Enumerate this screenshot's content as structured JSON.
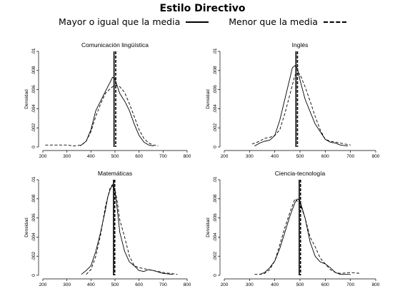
{
  "title": "Estilo Directivo",
  "legend": {
    "solid_label": "Mayor o igual que la media",
    "dashed_label": "Menor que la media"
  },
  "chart_data": [
    {
      "type": "line",
      "title": "Comunicación lingüística",
      "ylabel": "Densidad",
      "xlabel": "",
      "xlim": [
        200,
        800
      ],
      "ylim": [
        0,
        0.01
      ],
      "x_ticks": [
        "200",
        "300",
        "400",
        "500",
        "600",
        "700",
        "800"
      ],
      "y_ticks": [
        "0",
        ".002",
        ".004",
        ".006",
        ".008",
        ".01"
      ],
      "vlines": [
        {
          "x": 496,
          "style": "solid"
        },
        {
          "x": 503,
          "style": "dashed"
        }
      ],
      "series": [
        {
          "style": "solid",
          "x": [
            355,
            380,
            400,
            420,
            440,
            460,
            480,
            490,
            500,
            510,
            520,
            540,
            560,
            580,
            600,
            620,
            640,
            660
          ],
          "y": [
            0.0001,
            0.0006,
            0.0018,
            0.0038,
            0.0048,
            0.0058,
            0.0068,
            0.0073,
            0.0071,
            0.0063,
            0.0056,
            0.0048,
            0.0038,
            0.0024,
            0.0012,
            0.0005,
            0.0002,
            0.0001
          ]
        },
        {
          "style": "dashed",
          "x": [
            210,
            250,
            300,
            330,
            360,
            380,
            400,
            420,
            440,
            460,
            480,
            500,
            520,
            540,
            560,
            580,
            600,
            620,
            640,
            660,
            680
          ],
          "y": [
            0.0002,
            0.0002,
            0.0002,
            0.0001,
            0.0002,
            0.0006,
            0.0016,
            0.0032,
            0.0045,
            0.0056,
            0.0061,
            0.0065,
            0.0063,
            0.0057,
            0.0045,
            0.0032,
            0.0018,
            0.0009,
            0.0004,
            0.0002,
            0.0001
          ]
        }
      ]
    },
    {
      "type": "line",
      "title": "Inglés",
      "ylabel": "Densidad",
      "xlabel": "",
      "xlim": [
        200,
        800
      ],
      "ylim": [
        0,
        0.01
      ],
      "x_ticks": [
        "200",
        "300",
        "400",
        "500",
        "600",
        "700",
        "800"
      ],
      "y_ticks": [
        "0",
        ".002",
        ".004",
        ".006",
        ".008",
        ".01"
      ],
      "vlines": [
        {
          "x": 484,
          "style": "solid"
        },
        {
          "x": 490,
          "style": "dashed"
        }
      ],
      "series": [
        {
          "style": "solid",
          "x": [
            320,
            340,
            360,
            380,
            400,
            420,
            440,
            460,
            470,
            480,
            490,
            500,
            520,
            540,
            560,
            580,
            600,
            620,
            640,
            660,
            690
          ],
          "y": [
            0.0001,
            0.0004,
            0.0006,
            0.0007,
            0.0012,
            0.0028,
            0.005,
            0.0072,
            0.0083,
            0.0085,
            0.0082,
            0.007,
            0.005,
            0.0037,
            0.0024,
            0.0016,
            0.0008,
            0.0005,
            0.0004,
            0.0002,
            0.0001
          ]
        },
        {
          "style": "dashed",
          "x": [
            310,
            340,
            360,
            380,
            400,
            420,
            440,
            460,
            480,
            490,
            500,
            520,
            540,
            560,
            580,
            600,
            620,
            640,
            660,
            700
          ],
          "y": [
            0.0003,
            0.0006,
            0.0009,
            0.001,
            0.0012,
            0.0018,
            0.0035,
            0.0055,
            0.0075,
            0.0078,
            0.0076,
            0.0063,
            0.0048,
            0.0032,
            0.0018,
            0.0008,
            0.0006,
            0.0005,
            0.0004,
            0.0002
          ]
        }
      ]
    },
    {
      "type": "line",
      "title": "Matemáticas",
      "ylabel": "Densidad",
      "xlabel": "",
      "xlim": [
        200,
        800
      ],
      "ylim": [
        0,
        0.01
      ],
      "x_ticks": [
        "200",
        "300",
        "400",
        "500",
        "600",
        "700",
        "800"
      ],
      "y_ticks": [
        "0",
        ".002",
        ".004",
        ".006",
        ".008",
        ".01"
      ],
      "vlines": [
        {
          "x": 494,
          "style": "solid"
        },
        {
          "x": 499,
          "style": "dashed"
        }
      ],
      "series": [
        {
          "style": "solid",
          "x": [
            360,
            380,
            400,
            420,
            440,
            460,
            470,
            480,
            490,
            500,
            510,
            520,
            540,
            560,
            580,
            600,
            620,
            640,
            660,
            700,
            740
          ],
          "y": [
            0.0001,
            0.0005,
            0.001,
            0.0025,
            0.0045,
            0.0068,
            0.0082,
            0.009,
            0.0094,
            0.0088,
            0.0068,
            0.0045,
            0.0025,
            0.0014,
            0.001,
            0.0005,
            0.0004,
            0.0006,
            0.0005,
            0.0002,
            0.0001
          ]
        },
        {
          "style": "dashed",
          "x": [
            380,
            400,
            420,
            440,
            460,
            480,
            490,
            500,
            510,
            520,
            540,
            560,
            580,
            600,
            620,
            640,
            660,
            700,
            760
          ],
          "y": [
            0.0001,
            0.0006,
            0.002,
            0.0042,
            0.0072,
            0.0092,
            0.0095,
            0.009,
            0.0076,
            0.0058,
            0.004,
            0.002,
            0.001,
            0.0008,
            0.0007,
            0.0006,
            0.0005,
            0.0003,
            0.0001
          ]
        }
      ]
    },
    {
      "type": "line",
      "title": "Ciencia-tecnología",
      "ylabel": "Densidad",
      "xlabel": "",
      "xlim": [
        200,
        800
      ],
      "ylim": [
        0,
        0.01
      ],
      "x_ticks": [
        "200",
        "300",
        "400",
        "500",
        "600",
        "700",
        "800"
      ],
      "y_ticks": [
        "0",
        ".002",
        ".004",
        ".006",
        ".008",
        ".01"
      ],
      "vlines": [
        {
          "x": 497,
          "style": "solid"
        },
        {
          "x": 502,
          "style": "dashed"
        }
      ],
      "series": [
        {
          "style": "solid",
          "x": [
            340,
            360,
            380,
            400,
            420,
            440,
            460,
            480,
            490,
            500,
            520,
            540,
            560,
            580,
            600,
            620,
            640,
            660,
            700
          ],
          "y": [
            0.0001,
            0.0003,
            0.0008,
            0.0015,
            0.0028,
            0.0045,
            0.0062,
            0.0076,
            0.008,
            0.0078,
            0.006,
            0.0035,
            0.002,
            0.0014,
            0.0012,
            0.0008,
            0.0003,
            0.0001,
            0.0001
          ]
        },
        {
          "style": "dashed",
          "x": [
            320,
            340,
            360,
            380,
            400,
            420,
            440,
            460,
            480,
            500,
            520,
            540,
            560,
            580,
            600,
            620,
            640,
            660,
            700,
            740
          ],
          "y": [
            0.0001,
            0.0001,
            0.0002,
            0.0006,
            0.0015,
            0.0032,
            0.005,
            0.0066,
            0.008,
            0.0075,
            0.006,
            0.004,
            0.003,
            0.0018,
            0.0012,
            0.0006,
            0.0003,
            0.0002,
            0.0003,
            0.0002
          ]
        }
      ]
    }
  ]
}
